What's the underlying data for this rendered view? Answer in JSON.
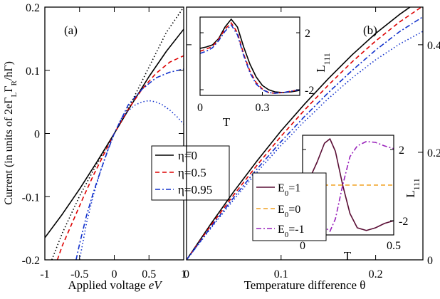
{
  "chart_data": [
    {
      "panel": "(a)",
      "type": "line",
      "xlabel": "Applied voltage eV",
      "ylabel": "Current (in units of 2eΓLΓR/hΓ)",
      "xlim": [
        -1,
        1
      ],
      "ylim": [
        -0.2,
        0.2
      ],
      "xticks": [
        "-1",
        "-0.5",
        "0",
        "0.5",
        "1"
      ],
      "yticks": [
        "-0.2",
        "-0.1",
        "0",
        "0.1",
        "0.2"
      ],
      "legend": {
        "placement": "center-right",
        "entries": [
          "η=0",
          "η=0.5",
          "η=0.95"
        ]
      },
      "series": [
        {
          "name": "η=0",
          "color": "#000000",
          "dash": "solid",
          "x": [
            -1,
            -0.75,
            -0.5,
            -0.25,
            0,
            0.25,
            0.5,
            0.75,
            1
          ],
          "y": [
            -0.165,
            -0.128,
            -0.088,
            -0.045,
            0,
            0.046,
            0.09,
            0.13,
            0.165
          ]
        },
        {
          "name": "η=0.5",
          "color": "#dd0000",
          "dash": "dash",
          "x": [
            -0.82,
            -0.75,
            -0.6,
            -0.45,
            -0.3,
            -0.15,
            0,
            0.2,
            0.4,
            0.6,
            0.8,
            1
          ],
          "y": [
            -0.2,
            -0.178,
            -0.14,
            -0.102,
            -0.066,
            -0.033,
            0,
            0.038,
            0.07,
            0.095,
            0.113,
            0.123
          ]
        },
        {
          "name": "η=0.95",
          "color": "#1030cc",
          "dash": "dashdot",
          "x": [
            -0.55,
            -0.5,
            -0.4,
            -0.3,
            -0.2,
            -0.1,
            0,
            0.2,
            0.4,
            0.6,
            0.8,
            1
          ],
          "y": [
            -0.2,
            -0.175,
            -0.13,
            -0.093,
            -0.06,
            -0.029,
            0,
            0.045,
            0.07,
            0.088,
            0.097,
            0.102
          ]
        },
        {
          "name": "",
          "color": "#000000",
          "dash": "dot",
          "x": [
            -0.9,
            -0.75,
            -0.5,
            -0.25,
            0,
            0.25,
            0.5,
            0.75,
            1
          ],
          "y": [
            -0.2,
            -0.158,
            -0.099,
            -0.048,
            0,
            0.05,
            0.105,
            0.16,
            0.2
          ]
        },
        {
          "name": "",
          "color": "#1030cc",
          "dash": "dot",
          "x": [
            -0.5,
            -0.4,
            -0.3,
            -0.2,
            -0.1,
            0,
            0.1,
            0.2,
            0.3,
            0.4,
            0.5,
            0.6,
            0.7,
            0.8,
            0.9,
            1
          ],
          "y": [
            -0.2,
            -0.142,
            -0.097,
            -0.06,
            -0.028,
            0,
            0.023,
            0.036,
            0.045,
            0.05,
            0.052,
            0.05,
            0.045,
            0.037,
            0.027,
            0.015
          ]
        }
      ]
    },
    {
      "panel": "(b)",
      "type": "line",
      "xlabel": "Temperature difference θ",
      "ylabel": "",
      "xlim": [
        0,
        0.25
      ],
      "ylim": [
        0,
        0.47
      ],
      "xticks": [
        "0",
        "0.1",
        "0.2"
      ],
      "yticks_right": [
        "0",
        "0.2",
        "0.4"
      ],
      "series": [
        {
          "name": "η=0",
          "color": "#000000",
          "dash": "solid",
          "x": [
            0,
            0.025,
            0.05,
            0.075,
            0.1,
            0.125,
            0.15,
            0.175,
            0.2,
            0.225,
            0.25
          ],
          "y": [
            0,
            0.065,
            0.127,
            0.185,
            0.24,
            0.29,
            0.337,
            0.381,
            0.421,
            0.456,
            0.487
          ]
        },
        {
          "name": "η=0.5",
          "color": "#dd0000",
          "dash": "dash",
          "x": [
            0,
            0.025,
            0.05,
            0.075,
            0.1,
            0.125,
            0.15,
            0.175,
            0.2,
            0.225,
            0.25
          ],
          "y": [
            0,
            0.062,
            0.121,
            0.177,
            0.23,
            0.279,
            0.325,
            0.368,
            0.407,
            0.442,
            0.472
          ]
        },
        {
          "name": "η=0.95",
          "color": "#1030cc",
          "dash": "dashdot",
          "x": [
            0,
            0.025,
            0.05,
            0.075,
            0.1,
            0.125,
            0.15,
            0.175,
            0.2,
            0.225,
            0.25
          ],
          "y": [
            0,
            0.059,
            0.116,
            0.17,
            0.22,
            0.267,
            0.311,
            0.352,
            0.39,
            0.424,
            0.452
          ]
        },
        {
          "name": "",
          "color": "#1030cc",
          "dash": "dot",
          "x": [
            0,
            0.025,
            0.05,
            0.075,
            0.1,
            0.125,
            0.15,
            0.175,
            0.2,
            0.225,
            0.25
          ],
          "y": [
            0,
            0.057,
            0.112,
            0.164,
            0.213,
            0.258,
            0.3,
            0.338,
            0.372,
            0.401,
            0.425
          ]
        }
      ]
    },
    {
      "panel": "inset-top",
      "type": "line",
      "xlabel": "T",
      "ylabel": "L111",
      "xlim": [
        0,
        0.48
      ],
      "ylim": [
        -2.4,
        3.1
      ],
      "xticks": [
        "0",
        "0.3"
      ],
      "yticks_right": [
        "-2",
        "2"
      ],
      "series": [
        {
          "name": "η=0",
          "color": "#000000",
          "dash": "solid",
          "x": [
            0,
            0.03,
            0.06,
            0.09,
            0.12,
            0.15,
            0.18,
            0.21,
            0.24,
            0.27,
            0.3,
            0.33,
            0.36,
            0.4,
            0.44,
            0.48
          ],
          "y": [
            0.9,
            1.0,
            1.15,
            1.6,
            2.4,
            2.95,
            2.4,
            1.0,
            -0.2,
            -1.1,
            -1.7,
            -2.0,
            -2.15,
            -2.2,
            -2.15,
            -2.05
          ]
        },
        {
          "name": "η=0.5",
          "color": "#dd0000",
          "dash": "dash",
          "x": [
            0,
            0.03,
            0.06,
            0.09,
            0.12,
            0.15,
            0.18,
            0.21,
            0.24,
            0.27,
            0.3,
            0.33,
            0.36,
            0.4,
            0.44,
            0.48
          ],
          "y": [
            0.7,
            0.85,
            1.05,
            1.55,
            2.25,
            2.7,
            2.0,
            0.5,
            -0.7,
            -1.5,
            -1.95,
            -2.2,
            -2.25,
            -2.2,
            -2.1,
            -2.0
          ]
        },
        {
          "name": "η=0.95",
          "color": "#1030cc",
          "dash": "dashdot",
          "x": [
            0,
            0.03,
            0.06,
            0.09,
            0.12,
            0.15,
            0.18,
            0.21,
            0.24,
            0.27,
            0.3,
            0.33,
            0.36,
            0.4,
            0.44,
            0.48
          ],
          "y": [
            0.55,
            0.7,
            0.95,
            1.45,
            2.1,
            2.55,
            1.85,
            0.4,
            -0.8,
            -1.6,
            -2.0,
            -2.2,
            -2.25,
            -2.2,
            -2.1,
            -2.0
          ]
        }
      ]
    },
    {
      "panel": "inset-bottom",
      "type": "line",
      "xlabel": "T",
      "ylabel": "L111",
      "xlim": [
        0,
        0.5
      ],
      "ylim": [
        -2.8,
        2.8
      ],
      "xticks": [
        "0",
        "0.5"
      ],
      "yticks_right": [
        "-2",
        "2"
      ],
      "legend": {
        "placement": "left",
        "entries": [
          "E0=1",
          "E0=0",
          "E0=-1"
        ]
      },
      "series": [
        {
          "name": "E0=1",
          "color": "#5a0e35",
          "dash": "solid",
          "x": [
            0,
            0.04,
            0.08,
            0.12,
            0.15,
            0.18,
            0.22,
            0.26,
            0.3,
            0.35,
            0.4,
            0.45,
            0.5
          ],
          "y": [
            0.1,
            0.4,
            1.3,
            2.35,
            2.6,
            1.9,
            0,
            -1.6,
            -2.4,
            -2.55,
            -2.4,
            -2.15,
            -2.0
          ]
        },
        {
          "name": "E0=0",
          "color": "#f0a020",
          "dash": "dash",
          "x": [
            0,
            0.5
          ],
          "y": [
            0,
            0
          ]
        },
        {
          "name": "E0=-1",
          "color": "#9922bb",
          "dash": "dashdot",
          "x": [
            0,
            0.04,
            0.08,
            0.12,
            0.15,
            0.18,
            0.22,
            0.26,
            0.3,
            0.35,
            0.4,
            0.45,
            0.5
          ],
          "y": [
            -0.1,
            -0.4,
            -1.3,
            -2.35,
            -2.6,
            -1.9,
            0,
            1.6,
            2.2,
            2.45,
            2.4,
            2.2,
            2.05
          ]
        }
      ]
    }
  ],
  "labels": {
    "panel_a": "(a)",
    "panel_b": "(b)",
    "ylabel_prefix": "Current (in units of 2eΓ",
    "ylabel_L": "L",
    "ylabel_mid": "Γ",
    "ylabel_R": "R",
    "ylabel_suffix": "/hΓ)",
    "xlabel_a_text": "Applied voltage ",
    "xlabel_a_var": "eV",
    "xlabel_b": "Temperature difference θ",
    "inset_T": "T",
    "inset_L": "L",
    "inset_L_sub": "111",
    "legend_eta": [
      "η=0",
      "η=0.5",
      "η=0.95"
    ],
    "legend_E0": [
      {
        "base": "E",
        "sub": "0",
        "rest": "=1"
      },
      {
        "base": "E",
        "sub": "0",
        "rest": "=0"
      },
      {
        "base": "E",
        "sub": "0",
        "rest": "=-1"
      }
    ]
  }
}
